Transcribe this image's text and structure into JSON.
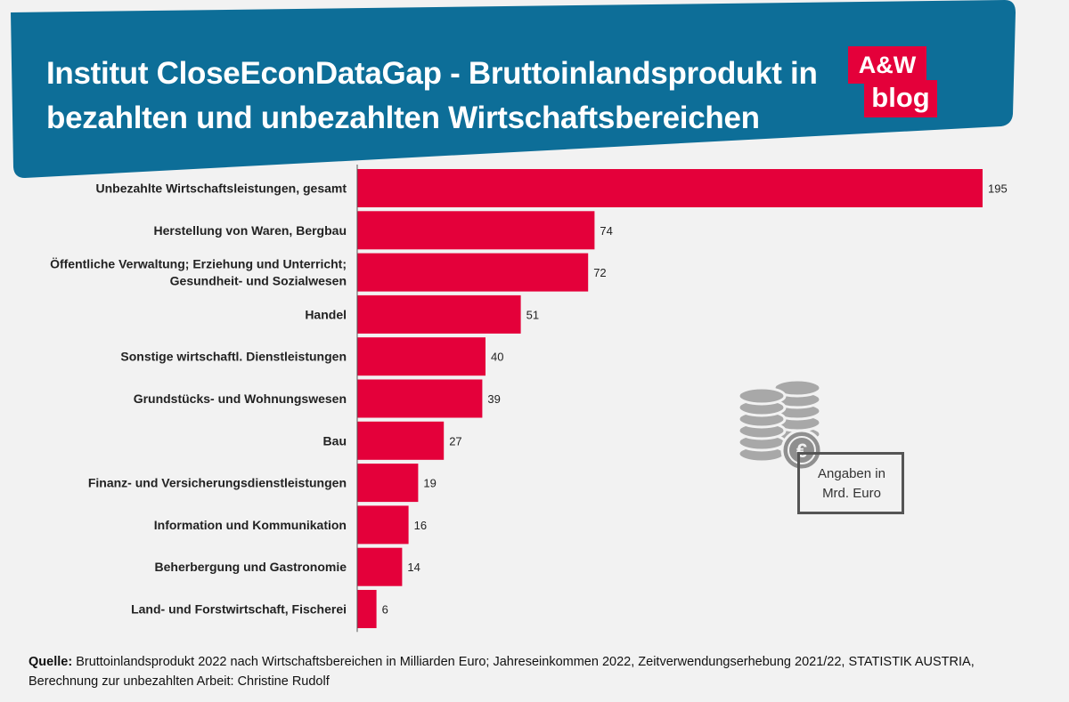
{
  "title": {
    "line1": "Institut CloseEconDataGap - Bruttoinlandsprodukt in",
    "line2": "bezahlten und unbezahlten Wirtschaftsbereichen"
  },
  "logo": {
    "top": "A&W",
    "bottom": "blog"
  },
  "colors": {
    "header": "#0d6e98",
    "bar": "#e4003a",
    "logo": "#e4003a",
    "background": "#f2f2f2"
  },
  "unit_note": {
    "line1": "Angaben in",
    "line2": "Mrd. Euro",
    "icon": "euro-coins-icon"
  },
  "source": {
    "label": "Quelle:",
    "text": "Bruttoinlandsprodukt 2022 nach Wirtschaftsbereichen in Milliarden Euro; Jahreseinkommen 2022, Zeitverwendungserhebung 2021/22, STATISTIK AUSTRIA, Berechnung zur unbezahlten Arbeit: Christine Rudolf"
  },
  "chart_data": {
    "type": "bar",
    "orientation": "horizontal",
    "title": "Institut CloseEconDataGap - Bruttoinlandsprodukt in bezahlten und unbezahlten Wirtschaftsbereichen",
    "unit": "Mrd. Euro",
    "categories": [
      [
        "Unbezahlte Wirtschaftsleistungen, gesamt"
      ],
      [
        "Herstellung von Waren, Bergbau"
      ],
      [
        "Öffentliche Verwaltung; Erziehung und Unterricht;",
        "Gesundheit- und Sozialwesen"
      ],
      [
        "Handel"
      ],
      [
        "Sonstige wirtschaftl. Dienstleistungen"
      ],
      [
        "Grundstücks- und Wohnungswesen"
      ],
      [
        "Bau"
      ],
      [
        "Finanz- und Versicherungsdienstleistungen"
      ],
      [
        "Information und Kommunikation"
      ],
      [
        "Beherbergung und Gastronomie"
      ],
      [
        "Land- und Forstwirtschaft, Fischerei"
      ]
    ],
    "values": [
      195,
      74,
      72,
      51,
      40,
      39,
      27,
      19,
      16,
      14,
      6
    ],
    "xlim": [
      0,
      195
    ],
    "grid": false,
    "legend": "none"
  }
}
